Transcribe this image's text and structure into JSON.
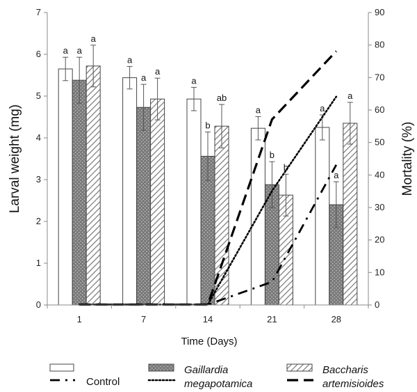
{
  "chart_data": {
    "type": "bar",
    "categories": [
      "1",
      "7",
      "14",
      "21",
      "28"
    ],
    "xlabel": "Time (Days)",
    "ylabel": "Larval  weight (mg)",
    "ylim": [
      0,
      7
    ],
    "yticks": [
      0,
      1,
      2,
      3,
      4,
      5,
      6,
      7
    ],
    "y2label": "Mortality (%)",
    "y2lim": [
      0,
      90
    ],
    "y2ticks": [
      0,
      10,
      20,
      30,
      40,
      50,
      60,
      70,
      80,
      90
    ],
    "series": [
      {
        "name": "Control",
        "fill": "#ffffff",
        "values": [
          5.65,
          5.44,
          4.93,
          4.23,
          4.25
        ],
        "errors": [
          0.28,
          0.27,
          0.28,
          0.28,
          0.3
        ],
        "labels": [
          "a",
          "a",
          "a",
          "a",
          "a"
        ]
      },
      {
        "name": "Gaillardia megapotamica",
        "name_lines": [
          "Gaillardia",
          "megapotamica"
        ],
        "fill": "#7f7f7f",
        "values": [
          5.38,
          4.73,
          3.56,
          2.88,
          2.4
        ],
        "errors": [
          0.55,
          0.55,
          0.58,
          0.55,
          0.55
        ],
        "labels": [
          "a",
          "a",
          "b",
          "b",
          "a"
        ]
      },
      {
        "name": "Baccharis artemisioides",
        "name_lines": [
          "Baccharis",
          "artemisioides"
        ],
        "fill": "#ffffff",
        "values": [
          5.72,
          4.93,
          4.28,
          2.63,
          4.35
        ],
        "errors": [
          0.5,
          0.5,
          0.52,
          0.5,
          0.5
        ],
        "labels": [
          "a",
          "a",
          "ab",
          "b",
          "a"
        ]
      }
    ],
    "mortality_series": [
      {
        "name": "Control",
        "style": "dashdot",
        "values": [
          0,
          0,
          0,
          7,
          43
        ]
      },
      {
        "name": "Gaillardia megapotamica",
        "style": "dotted",
        "values": [
          0,
          0,
          0,
          35,
          64
        ]
      },
      {
        "name": "Baccharis artemisioides",
        "style": "dashed",
        "values": [
          0,
          0,
          0,
          57,
          78
        ]
      }
    ],
    "legend_position": "bottom"
  }
}
